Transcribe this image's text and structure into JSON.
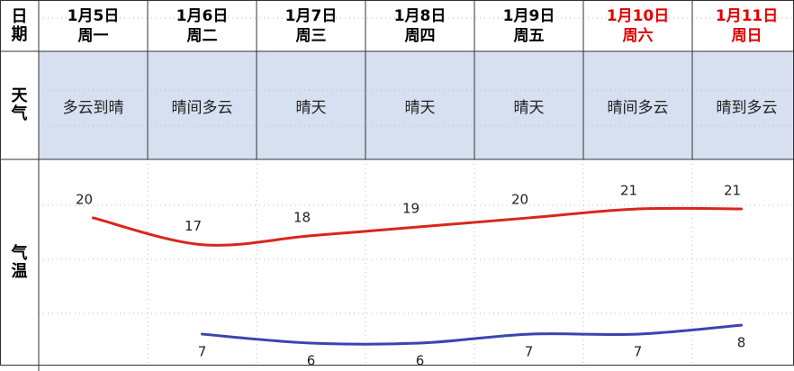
{
  "header_label": "日期",
  "weather_label": "天气",
  "temp_label": "气温",
  "days": [
    {
      "date": "1月5日",
      "weekday": "周一",
      "weather": "多云到晴"
    },
    {
      "date": "1月6日",
      "weekday": "周二",
      "weather": "晴间多云"
    },
    {
      "date": "1月7日",
      "weekday": "周三",
      "weather": "晴天"
    },
    {
      "date": "1月8日",
      "weekday": "周四",
      "weather": "晴天"
    },
    {
      "date": "1月9日",
      "weekday": "周五",
      "weather": "晴天"
    },
    {
      "date": "1月10日",
      "weekday": "周六",
      "weather": "晴间多云",
      "color": "#e00000"
    },
    {
      "date": "1月11日",
      "weekday": "周日",
      "weather": "晴到多云",
      "color": "#e00000"
    }
  ],
  "chart_data": {
    "type": "line",
    "series": [
      {
        "color": "#d9261c",
        "values": [
          20,
          17,
          18,
          19,
          20,
          21,
          21
        ]
      },
      {
        "color": "#3b44b0",
        "values": [
          null,
          7,
          6,
          6,
          7,
          7,
          8
        ]
      }
    ]
  }
}
